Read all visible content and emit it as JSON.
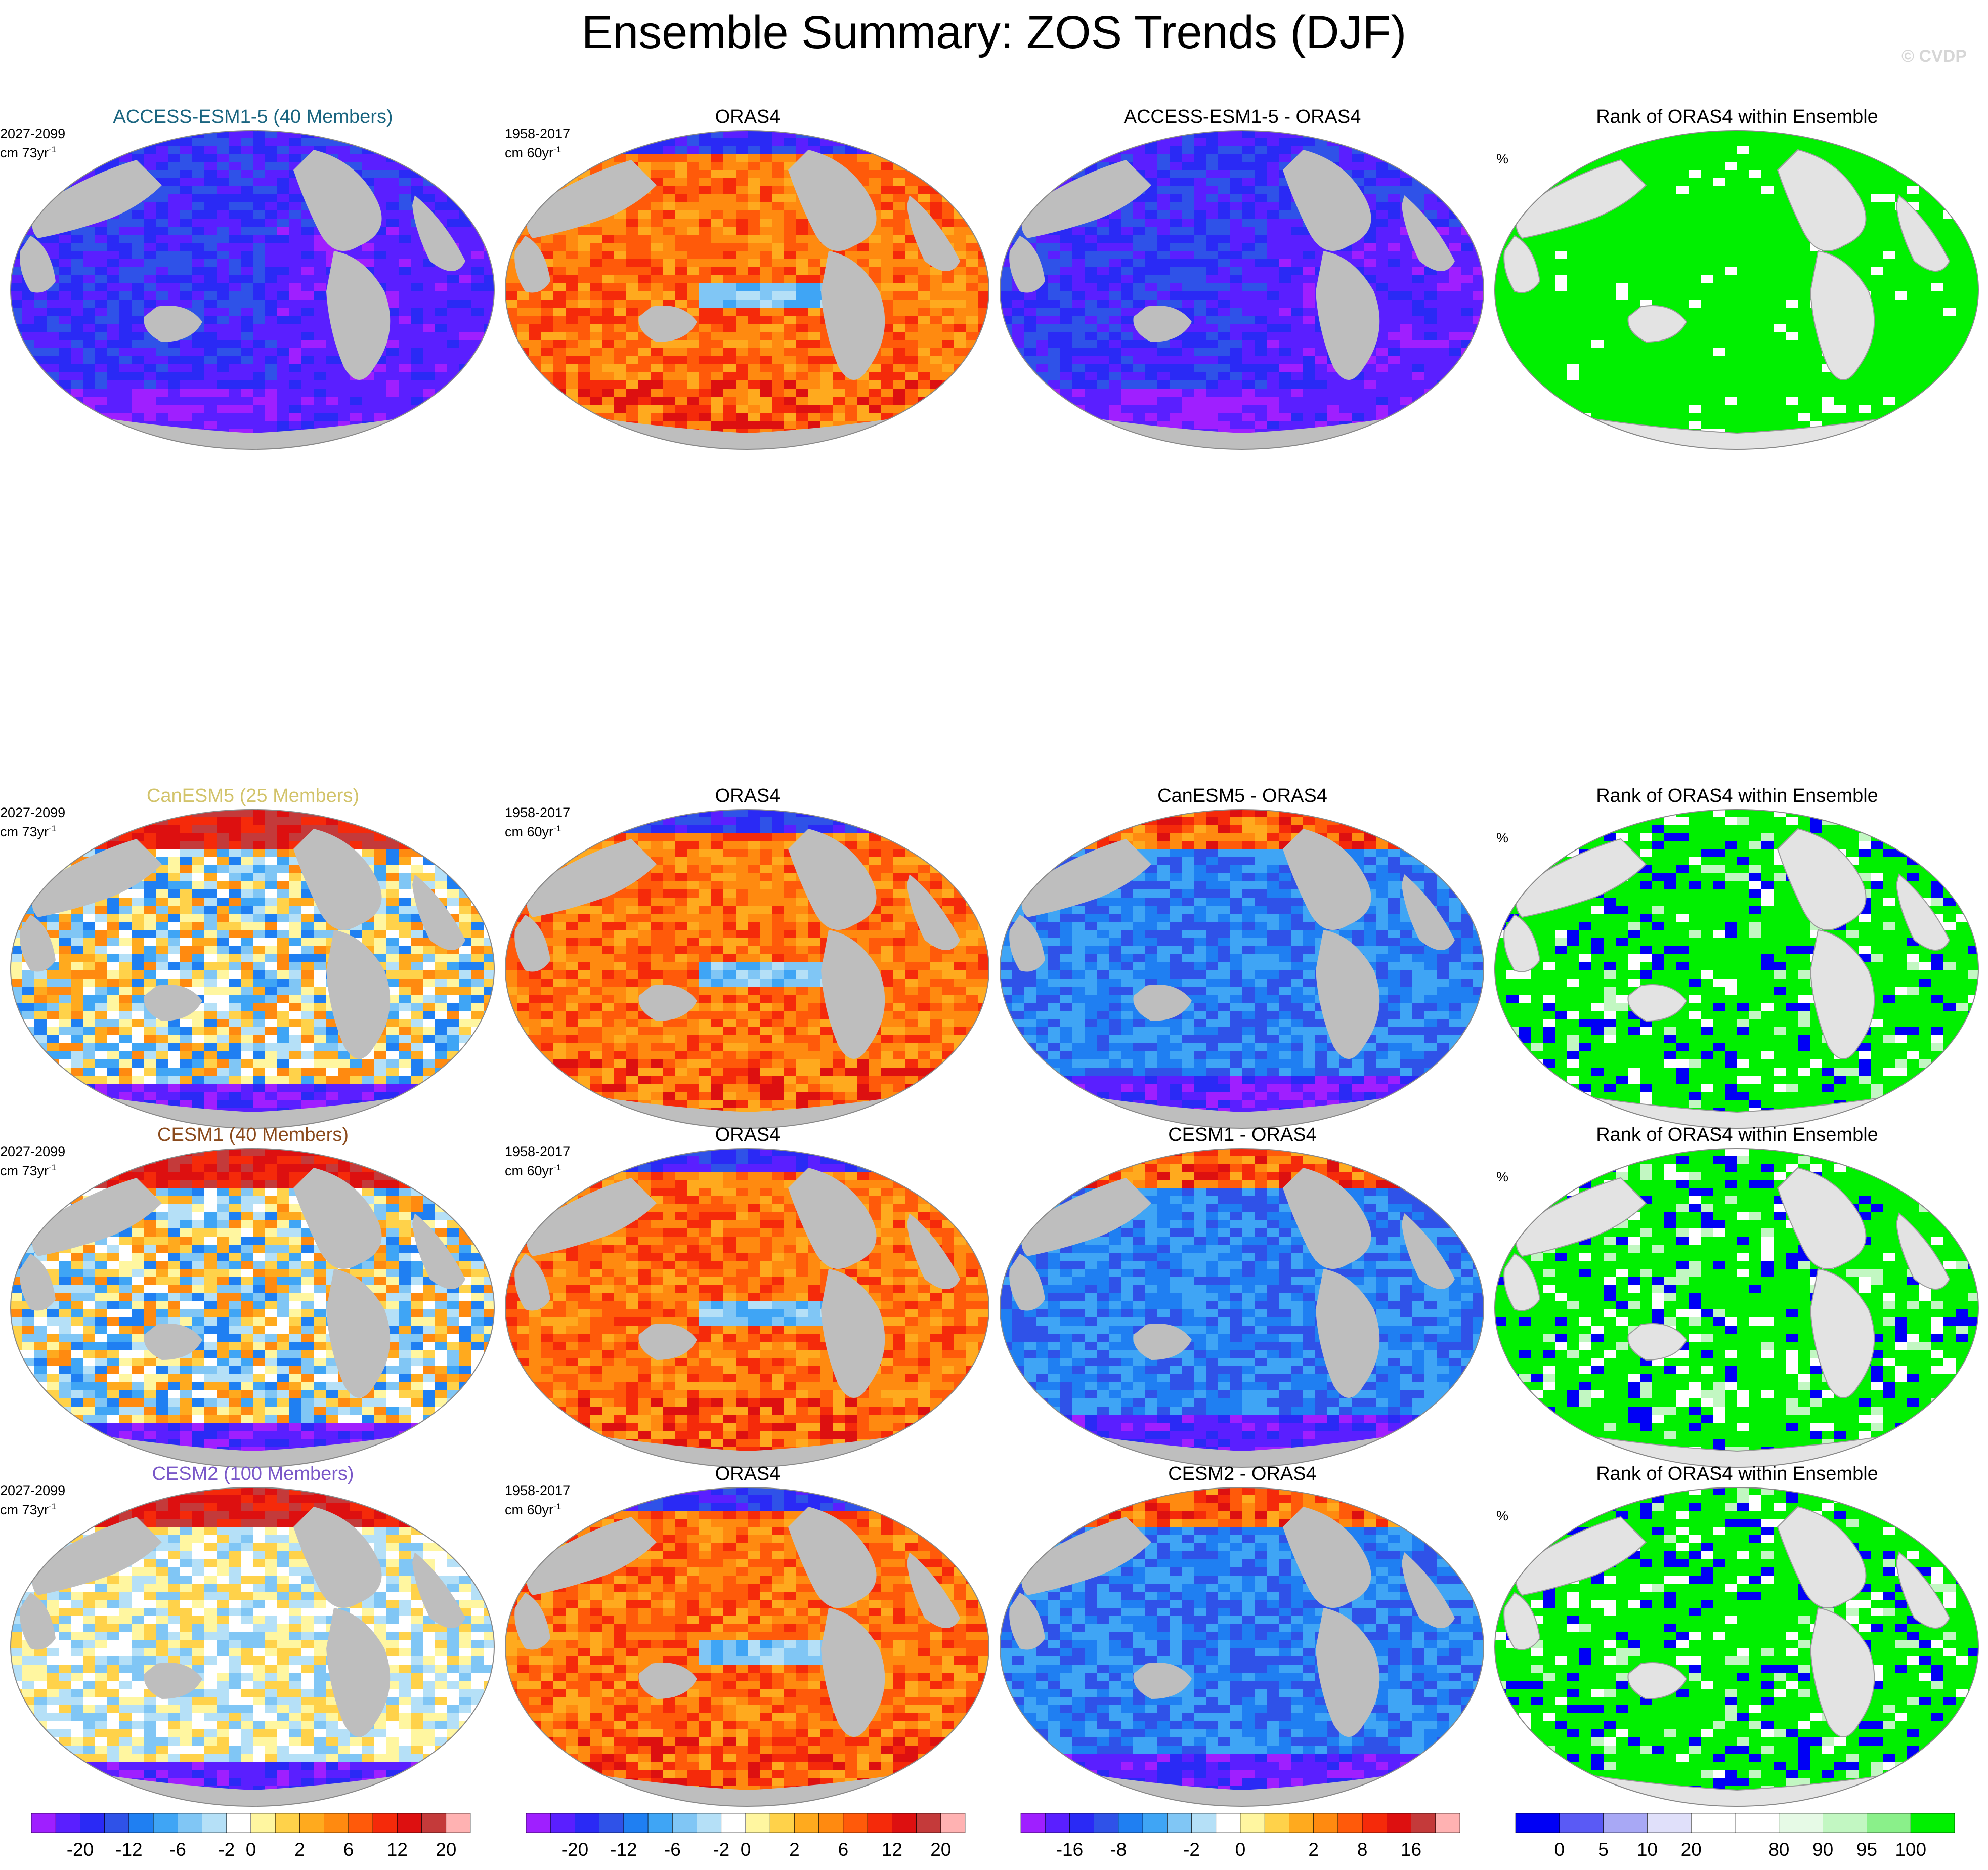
{
  "title": "Ensemble Summary: ZOS Trends (DJF)",
  "credit": "© CVDP",
  "colors": {
    "land_model": "#bebebe",
    "land_rank": "#e3e3e3",
    "model_names": {
      "ACCESS-ESM1-5": "#1a6580",
      "CanESM5": "#d2c36a",
      "CESM1": "#8a4a1c",
      "CESM2": "#7a58c8"
    }
  },
  "rows": [
    {
      "model": "ACCESS-ESM1-5",
      "model_title": "ACCESS-ESM1-5 (40 Members)",
      "model_period": "2027-2099",
      "model_units": "cm 73yr",
      "units_exp": "-1",
      "obs_title": "ORAS4",
      "obs_period": "1958-2017",
      "obs_units": "cm 60yr",
      "obs_units_exp": "-1",
      "diff_title": "ACCESS-ESM1-5 - ORAS4",
      "rank_title": "Rank of ORAS4 within Ensemble",
      "rank_units": "%",
      "fields": {
        "model": "strong-negative",
        "obs": "positive",
        "diff": "strong-negative",
        "rank": "mostly-high"
      }
    },
    {
      "model": "CanESM5",
      "model_title": "CanESM5 (25 Members)",
      "model_period": "2027-2099",
      "model_units": "cm 73yr",
      "units_exp": "-1",
      "obs_title": "ORAS4",
      "obs_period": "1958-2017",
      "obs_units": "cm 60yr",
      "obs_units_exp": "-1",
      "diff_title": "CanESM5 - ORAS4",
      "rank_title": "Rank of ORAS4 within Ensemble",
      "rank_units": "%",
      "fields": {
        "model": "mixed",
        "obs": "positive",
        "diff": "negative",
        "rank": "high-with-low-patches"
      }
    },
    {
      "model": "CESM1",
      "model_title": "CESM1 (40 Members)",
      "model_period": "2027-2099",
      "model_units": "cm 73yr",
      "units_exp": "-1",
      "obs_title": "ORAS4",
      "obs_period": "1958-2017",
      "obs_units": "cm 60yr",
      "obs_units_exp": "-1",
      "diff_title": "CESM1 - ORAS4",
      "rank_title": "Rank of ORAS4 within Ensemble",
      "rank_units": "%",
      "fields": {
        "model": "mixed",
        "obs": "positive",
        "diff": "negative",
        "rank": "high-with-low-patches"
      }
    },
    {
      "model": "CESM2",
      "model_title": "CESM2 (100 Members)",
      "model_period": "2027-2099",
      "model_units": "cm 73yr",
      "units_exp": "-1",
      "obs_title": "ORAS4",
      "obs_period": "1958-2017",
      "obs_units": "cm 60yr",
      "obs_units_exp": "-1",
      "diff_title": "CESM2 - ORAS4",
      "rank_title": "Rank of ORAS4 within Ensemble",
      "rank_units": "%",
      "fields": {
        "model": "mixed-light",
        "obs": "positive",
        "diff": "negative",
        "rank": "high-with-low-patches"
      }
    }
  ],
  "colorbars": [
    {
      "name": "trend",
      "colors": [
        "#9f1fff",
        "#5a1fff",
        "#2a2af5",
        "#2f52e8",
        "#1f7ff2",
        "#3fa5f5",
        "#80c6f5",
        "#b5e0f7",
        "#ffffff",
        "#fff6a0",
        "#ffd24a",
        "#ffaa1e",
        "#ff8a10",
        "#ff5a0a",
        "#f52a0a",
        "#dd1010",
        "#c43a3a",
        "#ffb2b2"
      ],
      "ticks": [
        "-20",
        "-12",
        "-6",
        "-2",
        "0",
        "2",
        "6",
        "12",
        "20"
      ],
      "tick_after_box": [
        1,
        3,
        5,
        7,
        8,
        10,
        12,
        14,
        16
      ]
    },
    {
      "name": "trend",
      "colors": [
        "#9f1fff",
        "#5a1fff",
        "#2a2af5",
        "#2f52e8",
        "#1f7ff2",
        "#3fa5f5",
        "#80c6f5",
        "#b5e0f7",
        "#ffffff",
        "#fff6a0",
        "#ffd24a",
        "#ffaa1e",
        "#ff8a10",
        "#ff5a0a",
        "#f52a0a",
        "#dd1010",
        "#c43a3a",
        "#ffb2b2"
      ],
      "ticks": [
        "-20",
        "-12",
        "-6",
        "-2",
        "0",
        "2",
        "6",
        "12",
        "20"
      ],
      "tick_after_box": [
        1,
        3,
        5,
        7,
        8,
        10,
        12,
        14,
        16
      ]
    },
    {
      "name": "difference",
      "colors": [
        "#9f1fff",
        "#5a1fff",
        "#2a2af5",
        "#2f52e8",
        "#1f7ff2",
        "#3fa5f5",
        "#80c6f5",
        "#b5e0f7",
        "#ffffff",
        "#fff6a0",
        "#ffd24a",
        "#ffaa1e",
        "#ff8a10",
        "#ff5a0a",
        "#f52a0a",
        "#dd1010",
        "#c43a3a",
        "#ffb2b2"
      ],
      "ticks": [
        "-16",
        "-8",
        "-2",
        "0",
        "2",
        "8",
        "16"
      ],
      "tick_after_box": [
        1,
        3,
        6,
        8,
        11,
        13,
        15
      ]
    },
    {
      "name": "rank",
      "colors": [
        "#0000f5",
        "#5a5af5",
        "#a8a8f5",
        "#e0e0fa",
        "#ffffff",
        "#ffffff",
        "#e6fae6",
        "#c2f7c2",
        "#8af08a",
        "#00f000"
      ],
      "ticks": [
        "0",
        "5",
        "10",
        "20",
        "80",
        "90",
        "95",
        "100"
      ],
      "tick_after_box": [
        0,
        1,
        2,
        3,
        5,
        6,
        7,
        8
      ]
    }
  ]
}
